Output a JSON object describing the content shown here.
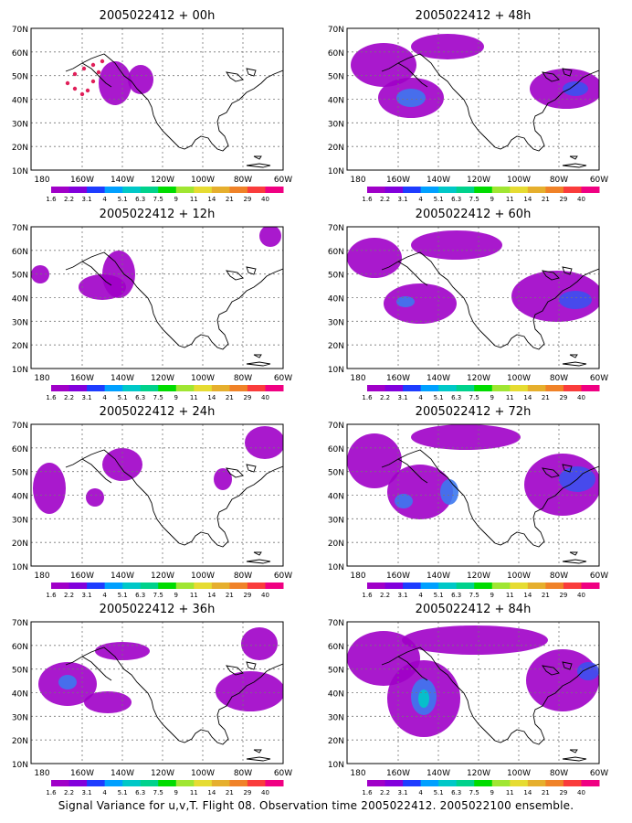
{
  "panels": [
    {
      "title": "2005022412 + 00h"
    },
    {
      "title": "2005022412 + 48h"
    },
    {
      "title": "2005022412 + 12h"
    },
    {
      "title": "2005022412 + 60h"
    },
    {
      "title": "2005022412 + 24h"
    },
    {
      "title": "2005022412 + 72h"
    },
    {
      "title": "2005022412 + 36h"
    },
    {
      "title": "2005022412 + 84h"
    }
  ],
  "axes": {
    "lat_labels": [
      "10N",
      "20N",
      "30N",
      "40N",
      "50N",
      "60N",
      "70N"
    ],
    "lon_labels": [
      "180",
      "160W",
      "140W",
      "120W",
      "100W",
      "80W",
      "60W"
    ]
  },
  "colorbar": {
    "labels": [
      "1.6",
      "2.2",
      "3.1",
      "4",
      "5.1",
      "6.3",
      "7.5",
      "9",
      "11",
      "14",
      "21",
      "29",
      "40"
    ],
    "colors": [
      "#a000c8",
      "#8200dc",
      "#1e3cff",
      "#00a0ff",
      "#00c8c8",
      "#00d28c",
      "#00dc00",
      "#a0e632",
      "#e6dc32",
      "#e6af2d",
      "#f08228",
      "#fa3c3c",
      "#f00082"
    ]
  },
  "footer": {
    "text": "Signal Variance for u,v,T. Flight 08. Observation time 2005022412. 2005022100 ensemble."
  }
}
